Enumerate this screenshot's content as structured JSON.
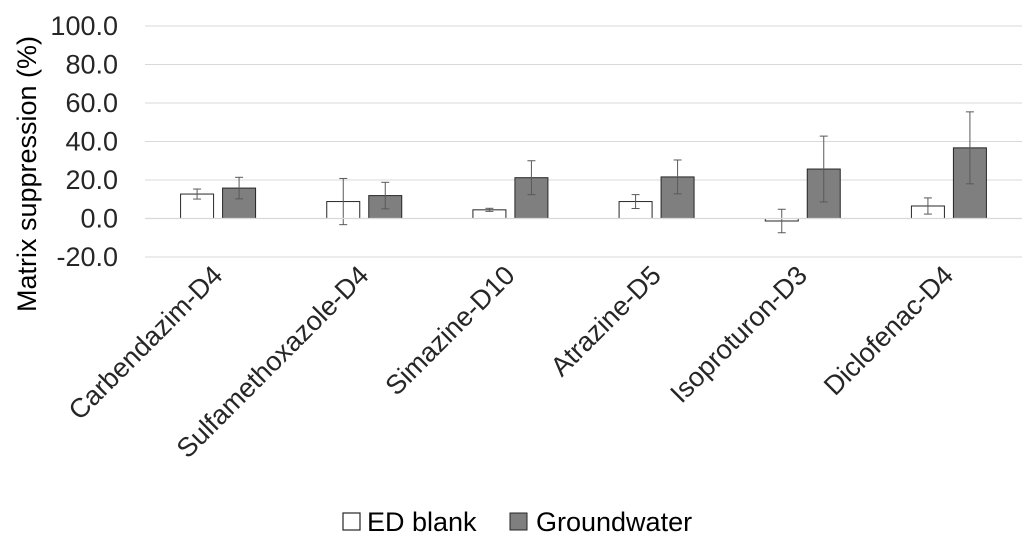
{
  "chart_data": {
    "type": "bar",
    "title": "",
    "xlabel": "",
    "ylabel": "Matrix suppression (%)",
    "ylim": [
      -20,
      100
    ],
    "yticks": [
      100,
      80,
      60,
      40,
      20,
      0,
      -20
    ],
    "ytick_labels": [
      "100.0",
      "80.0",
      "60.0",
      "40.0",
      "20.0",
      "0.0",
      "-20.0"
    ],
    "grid": true,
    "legend_position": "bottom",
    "categories": [
      "Carbendazim-D4",
      "Sulfamethoxazole-D4",
      "Simazine-D10",
      "Atrazine-D5",
      "Isoproturon-D3",
      "Diclofenac-D4"
    ],
    "series": [
      {
        "name": "ED blank",
        "color": "#ffffff",
        "values": [
          12.7,
          8.8,
          4.5,
          8.8,
          -1.3,
          6.5
        ],
        "error": [
          2.6,
          12.0,
          0.8,
          3.6,
          6.1,
          4.2
        ]
      },
      {
        "name": "Groundwater",
        "color": "#7f7f7f",
        "values": [
          15.8,
          11.9,
          21.2,
          21.6,
          25.7,
          36.7
        ],
        "error": [
          5.6,
          6.9,
          8.8,
          8.8,
          17.1,
          18.7
        ]
      }
    ]
  }
}
